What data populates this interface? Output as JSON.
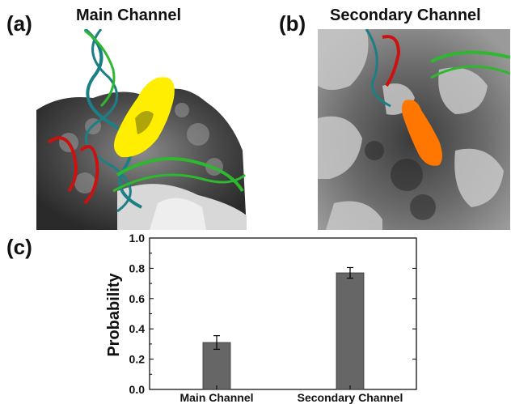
{
  "panels": {
    "a": {
      "label": "(a)",
      "title": "Main Channel"
    },
    "b": {
      "label": "(b)",
      "title": "Secondary Channel"
    },
    "c": {
      "label": "(c)"
    }
  },
  "colors": {
    "bar": "#666666",
    "main_channel_blob": "#ffee00",
    "secondary_channel_blob": "#ff7700",
    "dna_green": "#2fb82f",
    "dna_teal": "#1d7f86",
    "rna_red": "#cc1111"
  },
  "chart_data": {
    "type": "bar",
    "categories": [
      "Main Channel",
      "Secondary Channel"
    ],
    "values": [
      0.31,
      0.77
    ],
    "errors": [
      0.045,
      0.035
    ],
    "title": "",
    "xlabel": "",
    "ylabel": "Probability",
    "ylim": [
      0.0,
      1.0
    ],
    "yticks": [
      "0.0",
      "0.2",
      "0.4",
      "0.6",
      "0.8",
      "1.0"
    ],
    "grid": false
  }
}
